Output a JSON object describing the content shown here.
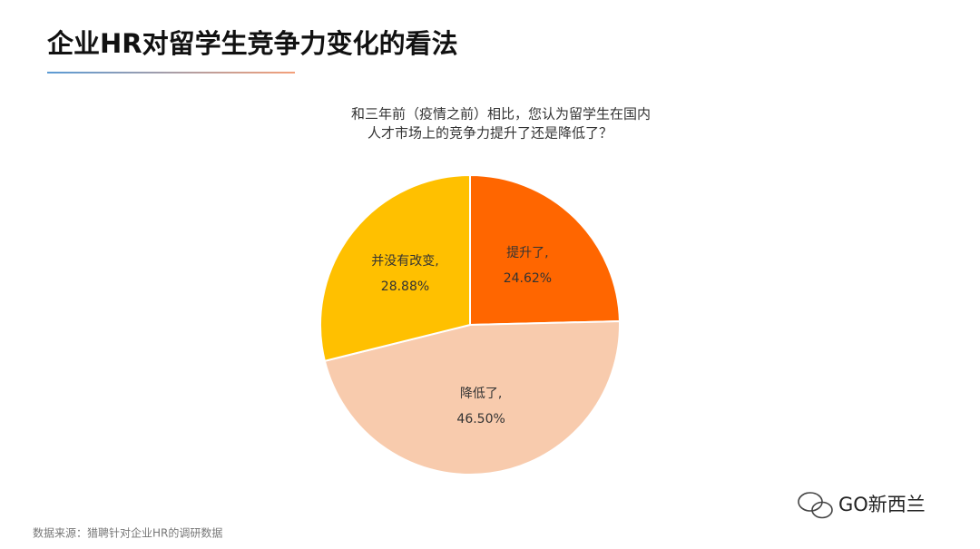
{
  "title": "企业HR对留学生竞争力变化的看法",
  "chart_data": {
    "type": "pie",
    "subtitle": [
      "和三年前（疫情之前）相比，您认为留学生在国内",
      "人才市场上的竞争力提升了还是降低了？"
    ],
    "categories": [
      "提升了,",
      "降低了,",
      "并没有改变,"
    ],
    "values": [
      24.62,
      46.5,
      28.88
    ],
    "value_labels": [
      "24.62%",
      "46.50%",
      "28.88%"
    ],
    "colors": [
      "#ff6600",
      "#f8cbad",
      "#ffc000"
    ]
  },
  "source": "数据来源：猎聘针对企业HR的调研数据",
  "watermark": "GO新西兰"
}
